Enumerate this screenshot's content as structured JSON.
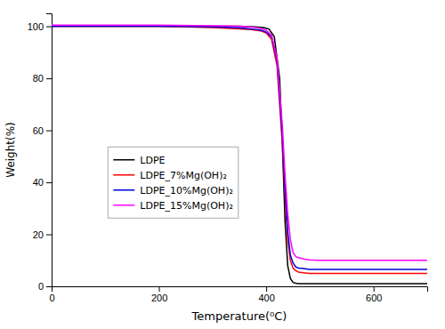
{
  "chart_data": {
    "type": "line",
    "xlabel": "Temperature(⁰C)",
    "ylabel": "Weight(%)",
    "xlim": [
      0,
      700
    ],
    "ylim": [
      0,
      105
    ],
    "xticks": [
      0,
      200,
      400,
      600
    ],
    "yticks": [
      0,
      20,
      40,
      60,
      80,
      100
    ],
    "grid": false,
    "legend": "lower left",
    "series": [
      {
        "name": "LDPE",
        "color": "#000000",
        "x": [
          0,
          100,
          200,
          300,
          350,
          380,
          395,
          405,
          415,
          425,
          430,
          435,
          440,
          445,
          450,
          455,
          460,
          470,
          480,
          500,
          550,
          600,
          650,
          700
        ],
        "values": [
          100,
          100,
          100,
          100,
          100,
          99.8,
          99.5,
          99.0,
          96,
          80,
          55,
          25,
          8,
          3,
          1.5,
          1.2,
          1.0,
          1.0,
          1.0,
          1.0,
          1.0,
          1.0,
          1.0,
          1.0
        ]
      },
      {
        "name": "LDPE_7%Mg(OH)₂",
        "color": "#ff0000",
        "x": [
          0,
          100,
          200,
          300,
          350,
          370,
          380,
          390,
          400,
          410,
          420,
          430,
          435,
          440,
          445,
          450,
          455,
          460,
          470,
          480,
          500,
          550,
          600,
          650,
          700
        ],
        "values": [
          100,
          100,
          100,
          99.5,
          99.0,
          98.8,
          98.5,
          98.2,
          97.5,
          95,
          85,
          55,
          35,
          18,
          10,
          7.0,
          6.0,
          5.5,
          5.2,
          5.0,
          5.0,
          5.0,
          5.0,
          5.0,
          5.0
        ]
      },
      {
        "name": "LDPE_10%Mg(OH)₂",
        "color": "#0000dd",
        "x": [
          0,
          100,
          200,
          300,
          350,
          370,
          380,
          390,
          400,
          410,
          420,
          430,
          435,
          440,
          445,
          450,
          455,
          460,
          470,
          480,
          500,
          550,
          600,
          650,
          700
        ],
        "values": [
          100,
          100,
          100,
          99.8,
          99.4,
          99.0,
          98.8,
          98.5,
          97.8,
          96,
          87,
          58,
          38,
          21,
          12,
          9.0,
          7.5,
          7.0,
          6.8,
          6.5,
          6.5,
          6.5,
          6.5,
          6.5,
          6.5
        ]
      },
      {
        "name": "LDPE_15%Mg(OH)₂",
        "color": "#ff00ff",
        "x": [
          0,
          100,
          200,
          300,
          350,
          370,
          380,
          390,
          400,
          410,
          420,
          430,
          435,
          440,
          445,
          450,
          455,
          460,
          470,
          480,
          500,
          550,
          600,
          650,
          700
        ],
        "values": [
          100.5,
          100.5,
          100.5,
          100.2,
          100.0,
          99.8,
          99.5,
          99.2,
          98.5,
          96.5,
          88,
          62,
          43,
          28,
          18,
          13,
          11.5,
          11.0,
          10.5,
          10.2,
          10.0,
          10.0,
          10.0,
          10.0,
          10.0
        ]
      }
    ]
  }
}
